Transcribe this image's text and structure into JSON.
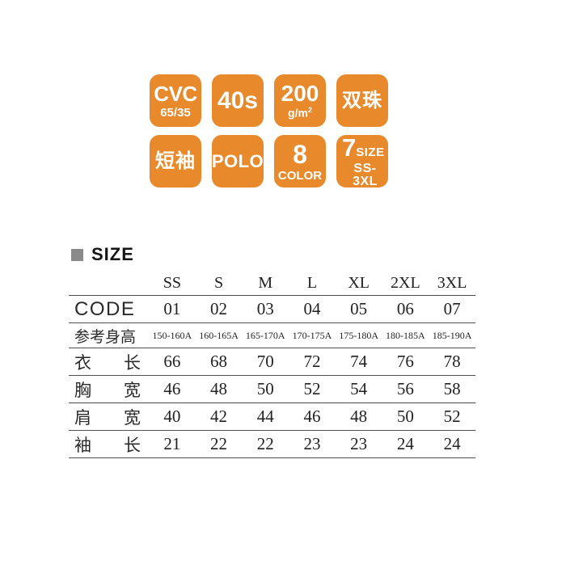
{
  "colors": {
    "badge_orange": "#E8892C",
    "badge_text": "#FFFFFF",
    "bullet_gray": "#8A8A8A",
    "table_line": "#4D4D4D",
    "text_dark": "#222222"
  },
  "badges": [
    {
      "main": "CVC",
      "sub": "65/35"
    },
    {
      "main": "40s"
    },
    {
      "main": "200",
      "sub": "g/m",
      "sup": "2"
    },
    {
      "main": "双珠"
    },
    {
      "main": "短袖"
    },
    {
      "main": "POLO"
    },
    {
      "main": "8",
      "sub": "COLOR"
    },
    {
      "main": "7",
      "side": "SIZE",
      "sub": "SS-3XL"
    }
  ],
  "size_section": {
    "title": "SIZE"
  },
  "size_table": {
    "columns": [
      "SS",
      "S",
      "M",
      "L",
      "XL",
      "2XL",
      "3XL"
    ],
    "rows": [
      {
        "label": "CODE",
        "values": [
          "01",
          "02",
          "03",
          "04",
          "05",
          "06",
          "07"
        ]
      },
      {
        "label": "参考身高",
        "values": [
          "150-160A",
          "160-165A",
          "165-170A",
          "170-175A",
          "175-180A",
          "180-185A",
          "185-190A"
        ]
      },
      {
        "label": "衣长",
        "values": [
          "66",
          "68",
          "70",
          "72",
          "74",
          "76",
          "78"
        ]
      },
      {
        "label": "胸宽",
        "values": [
          "46",
          "48",
          "50",
          "52",
          "54",
          "56",
          "58"
        ]
      },
      {
        "label": "肩宽",
        "values": [
          "40",
          "42",
          "44",
          "46",
          "48",
          "50",
          "52"
        ]
      },
      {
        "label": "袖长",
        "values": [
          "21",
          "22",
          "22",
          "23",
          "23",
          "24",
          "24"
        ]
      }
    ]
  }
}
